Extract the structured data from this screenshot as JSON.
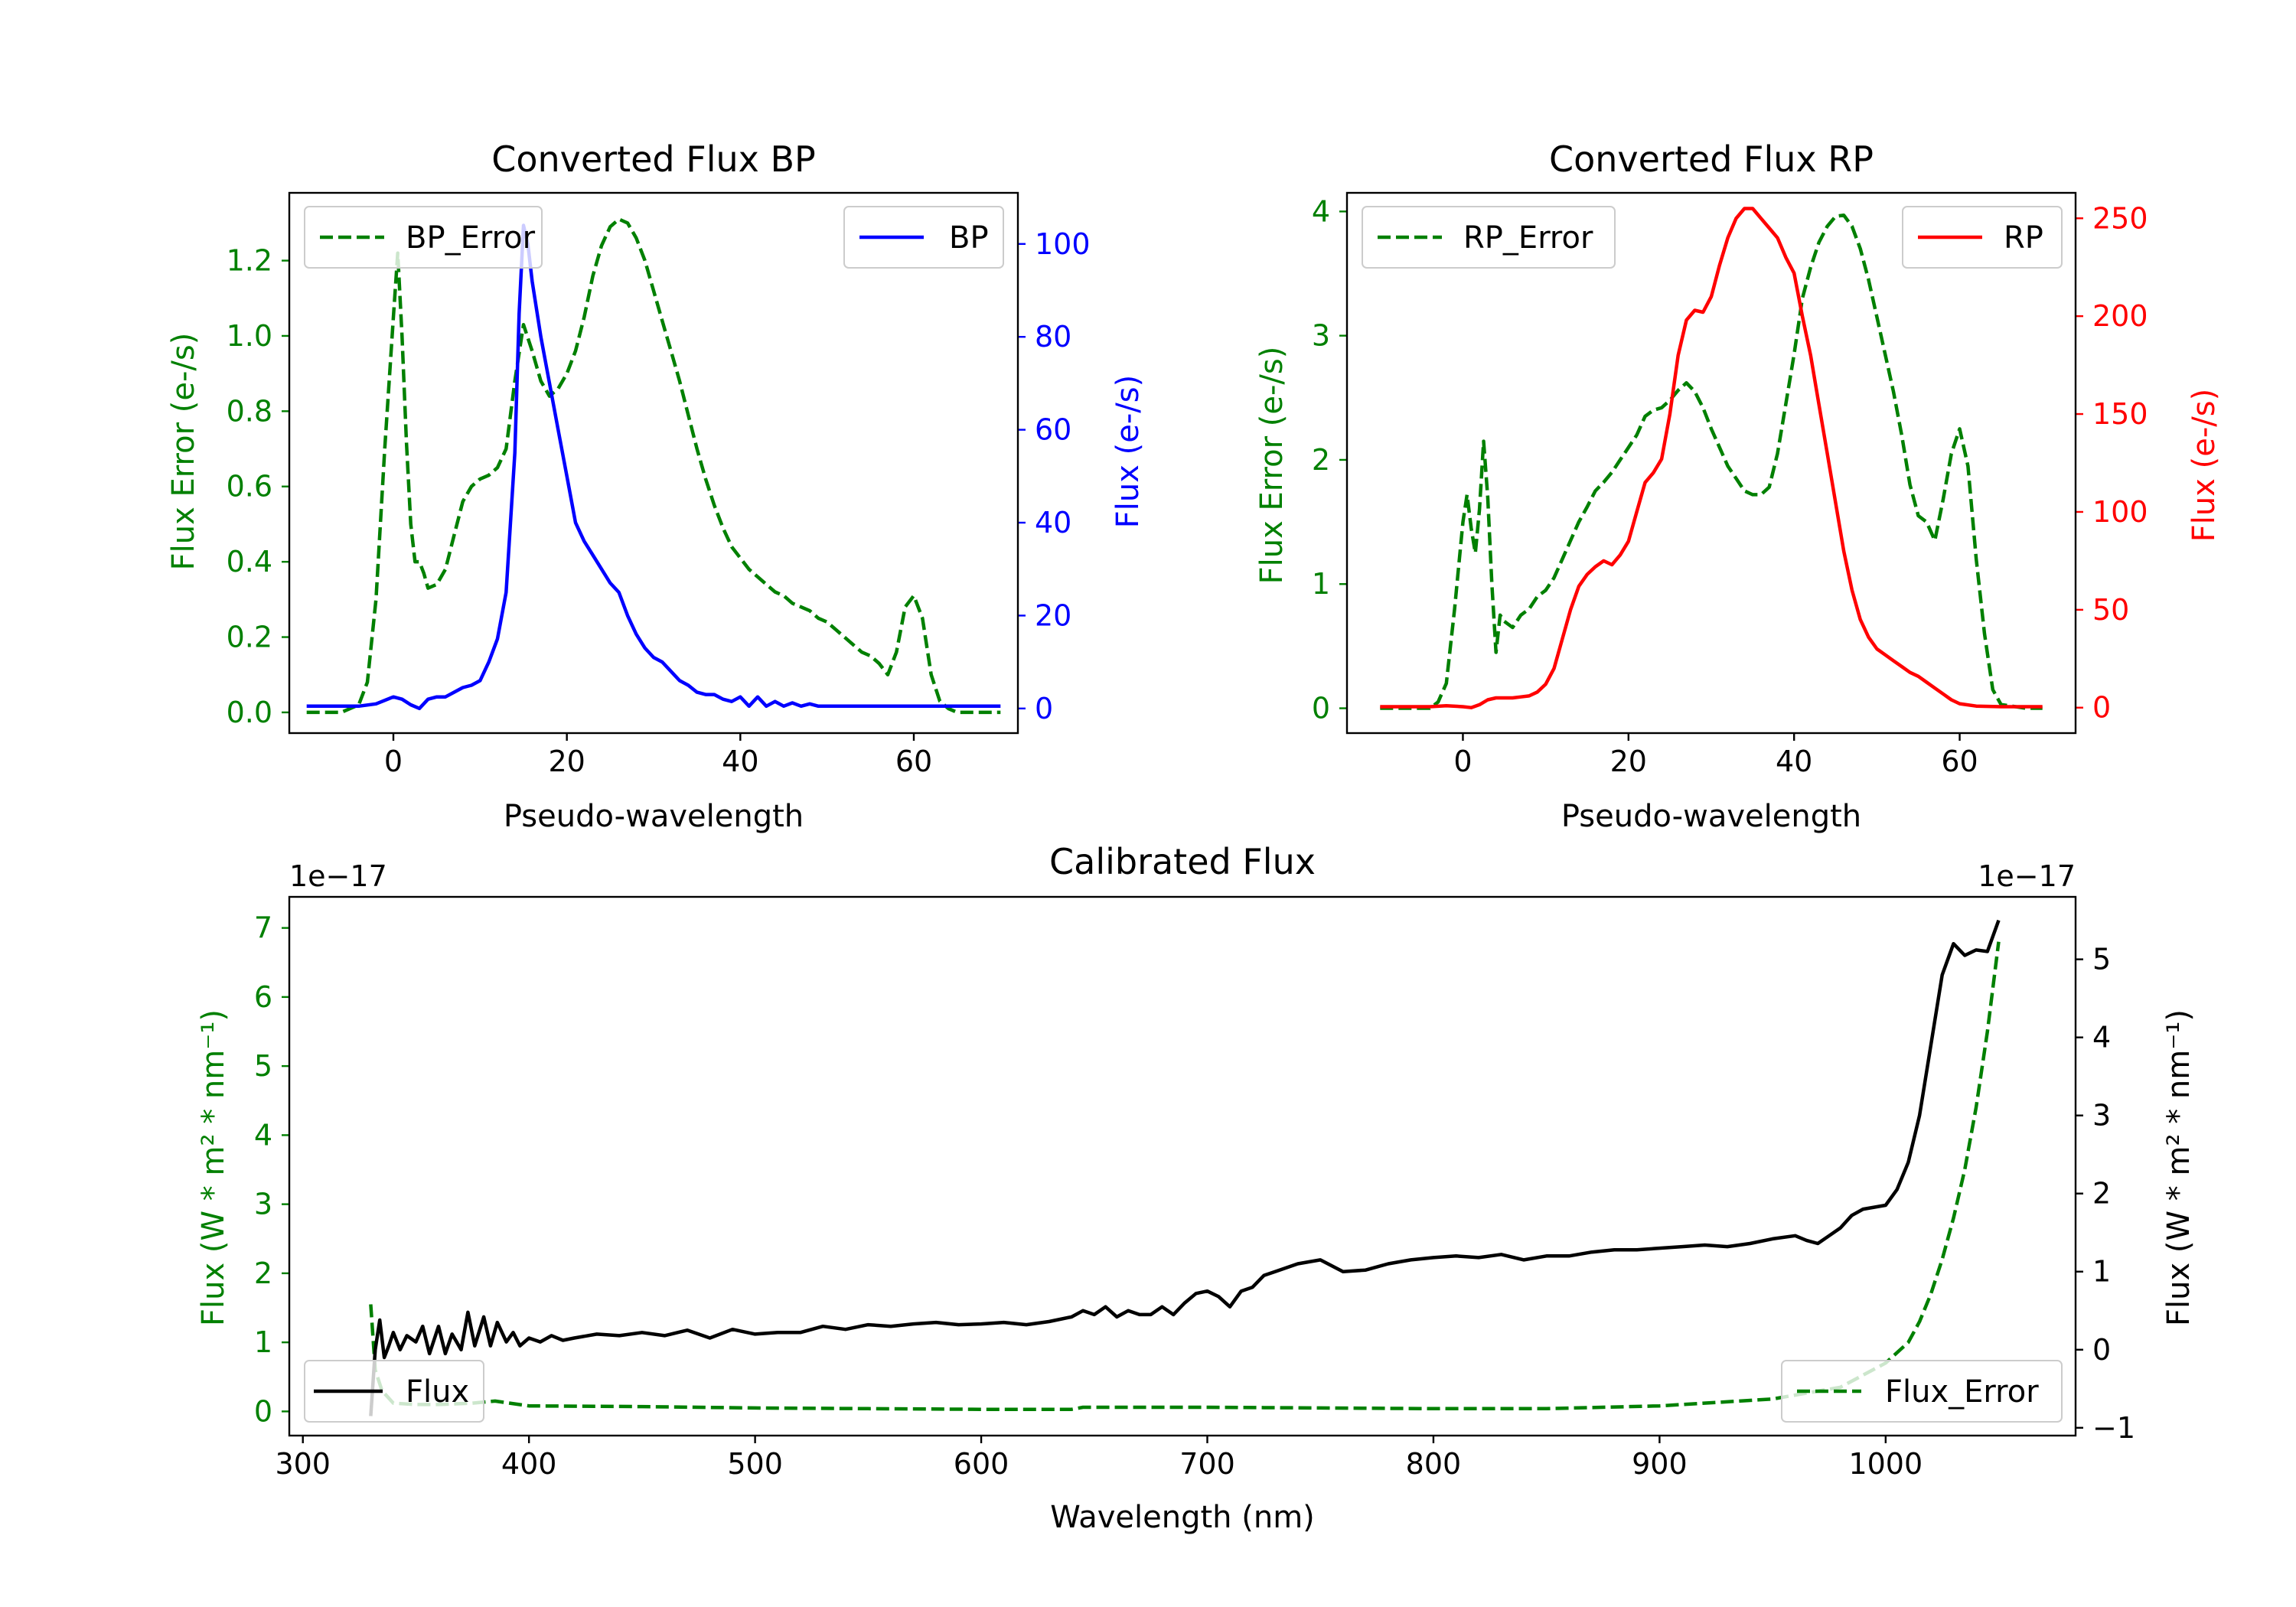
{
  "colors": {
    "error": "#008000",
    "bp": "#0000ff",
    "rp": "#ff0000",
    "flux": "#000000"
  },
  "chart_data": [
    {
      "id": "bp",
      "type": "line",
      "title": "Converted Flux BP",
      "xlabel": "Pseudo-wavelength",
      "ylabel_left": "Flux Error (e-/s)",
      "ylabel_right": "Flux (e-/s)",
      "xlim": [
        -12,
        72
      ],
      "ylim_left": [
        -0.055,
        1.38
      ],
      "ylim_right": [
        -5.3,
        111
      ],
      "xticks": [
        0,
        20,
        40,
        60
      ],
      "yticks_left": [
        0.0,
        0.2,
        0.4,
        0.6,
        0.8,
        1.0,
        1.2
      ],
      "yticks_left_labels": [
        "0.0",
        "0.2",
        "0.4",
        "0.6",
        "0.8",
        "1.0",
        "1.2"
      ],
      "yticks_right": [
        0,
        20,
        40,
        60,
        80,
        100
      ],
      "yticks_right_labels": [
        "0",
        "20",
        "40",
        "60",
        "80",
        "100"
      ],
      "legend_left": "BP_Error",
      "legend_right": "BP",
      "series": [
        {
          "name": "BP_Error",
          "axis": "left",
          "color": "#008000",
          "dash": true,
          "x": [
            -10,
            -6,
            -4,
            -3,
            -2,
            -1,
            0,
            0.5,
            1,
            1.5,
            2,
            2.5,
            3,
            3.5,
            4,
            5,
            6,
            7,
            8,
            9,
            10,
            11,
            12,
            13,
            14,
            15,
            16,
            17,
            18,
            19,
            20,
            21,
            22,
            23,
            24,
            25,
            26,
            27,
            28,
            29,
            30,
            31,
            32,
            33,
            34,
            35,
            36,
            37,
            38,
            39,
            40,
            41,
            42,
            43,
            44,
            45,
            46,
            47,
            48,
            49,
            50,
            51,
            52,
            53,
            54,
            55,
            56,
            57,
            58,
            59,
            60,
            61,
            62,
            63,
            64,
            65,
            66,
            68,
            70
          ],
          "y": [
            0.0,
            0.0,
            0.02,
            0.08,
            0.3,
            0.7,
            1.05,
            1.22,
            1.0,
            0.72,
            0.5,
            0.4,
            0.4,
            0.37,
            0.33,
            0.34,
            0.38,
            0.47,
            0.56,
            0.6,
            0.62,
            0.63,
            0.65,
            0.7,
            0.88,
            1.03,
            0.96,
            0.88,
            0.84,
            0.86,
            0.9,
            0.96,
            1.05,
            1.16,
            1.24,
            1.29,
            1.31,
            1.3,
            1.26,
            1.2,
            1.12,
            1.04,
            0.96,
            0.88,
            0.79,
            0.7,
            0.62,
            0.55,
            0.49,
            0.44,
            0.41,
            0.38,
            0.36,
            0.34,
            0.32,
            0.31,
            0.29,
            0.28,
            0.27,
            0.25,
            0.24,
            0.22,
            0.2,
            0.18,
            0.16,
            0.15,
            0.13,
            0.1,
            0.16,
            0.28,
            0.31,
            0.25,
            0.1,
            0.03,
            0.01,
            0.0,
            0.0,
            0.0,
            0.0
          ]
        },
        {
          "name": "BP",
          "axis": "right",
          "color": "#0000ff",
          "dash": false,
          "x": [
            -10,
            -4,
            -2,
            0,
            1,
            2,
            3,
            4,
            5,
            6,
            7,
            8,
            9,
            10,
            11,
            12,
            13,
            14,
            14.5,
            15,
            15.5,
            16,
            17,
            18,
            19,
            20,
            21,
            22,
            23,
            24,
            25,
            26,
            27,
            28,
            29,
            30,
            31,
            32,
            33,
            34,
            35,
            36,
            37,
            38,
            39,
            40,
            41,
            42,
            43,
            44,
            45,
            46,
            47,
            48,
            49,
            50,
            52,
            55,
            58,
            60,
            62,
            65,
            70
          ],
          "y": [
            0.5,
            0.5,
            1.0,
            2.5,
            2.0,
            0.8,
            0.0,
            2.0,
            2.5,
            2.5,
            3.5,
            4.5,
            5,
            6,
            10,
            15,
            25,
            55,
            85,
            104,
            100,
            92,
            80,
            70,
            60,
            50,
            40,
            36,
            33,
            30,
            27,
            25,
            20,
            16,
            13,
            11,
            10,
            8,
            6,
            5,
            3.5,
            3,
            3,
            2,
            1.5,
            2.5,
            0.5,
            2.5,
            0.5,
            1.5,
            0.5,
            1.2,
            0.5,
            1.0,
            0.5,
            0.5,
            0.5,
            0.5,
            0.5,
            0.5,
            0.5,
            0.5,
            0.5
          ]
        }
      ]
    },
    {
      "id": "rp",
      "type": "line",
      "title": "Converted Flux RP",
      "xlabel": "Pseudo-wavelength",
      "ylabel_left": "Flux Error (e-/s)",
      "ylabel_right": "Flux (e-/s)",
      "xlim": [
        -14,
        74
      ],
      "ylim_left": [
        -0.2,
        4.15
      ],
      "ylim_right": [
        -13,
        263
      ],
      "xticks": [
        0,
        20,
        40,
        60
      ],
      "yticks_left": [
        0,
        1,
        2,
        3,
        4
      ],
      "yticks_left_labels": [
        "0",
        "1",
        "2",
        "3",
        "4"
      ],
      "yticks_right": [
        0,
        50,
        100,
        150,
        200,
        250
      ],
      "yticks_right_labels": [
        "0",
        "50",
        "100",
        "150",
        "200",
        "250"
      ],
      "legend_left": "RP_Error",
      "legend_right": "RP",
      "series": [
        {
          "name": "RP_Error",
          "axis": "left",
          "color": "#008000",
          "dash": true,
          "x": [
            -10,
            -4,
            -3,
            -2,
            -1,
            0,
            0.5,
            1,
            1.5,
            2,
            2.5,
            3,
            3.5,
            4,
            4.5,
            5,
            6,
            7,
            8,
            9,
            10,
            11,
            12,
            13,
            14,
            15,
            16,
            17,
            18,
            19,
            20,
            21,
            22,
            23,
            24,
            25,
            26,
            27,
            28,
            29,
            30,
            31,
            32,
            33,
            34,
            35,
            36,
            37,
            38,
            39,
            40,
            41,
            42,
            43,
            44,
            45,
            46,
            47,
            48,
            49,
            50,
            51,
            52,
            53,
            54,
            55,
            56,
            57,
            58,
            59,
            60,
            61,
            62,
            63,
            64,
            65,
            68,
            70
          ],
          "y": [
            0.0,
            0.0,
            0.05,
            0.2,
            0.8,
            1.5,
            1.72,
            1.45,
            1.25,
            1.6,
            2.15,
            1.7,
            1.0,
            0.45,
            0.75,
            0.7,
            0.65,
            0.75,
            0.8,
            0.9,
            0.95,
            1.05,
            1.2,
            1.35,
            1.5,
            1.62,
            1.75,
            1.82,
            1.9,
            2.0,
            2.1,
            2.2,
            2.35,
            2.4,
            2.42,
            2.48,
            2.56,
            2.62,
            2.55,
            2.42,
            2.25,
            2.1,
            1.95,
            1.85,
            1.75,
            1.72,
            1.72,
            1.78,
            2.05,
            2.45,
            2.85,
            3.3,
            3.55,
            3.75,
            3.88,
            3.96,
            3.97,
            3.88,
            3.7,
            3.45,
            3.15,
            2.85,
            2.55,
            2.2,
            1.8,
            1.55,
            1.5,
            1.35,
            1.68,
            2.05,
            2.25,
            1.95,
            1.2,
            0.6,
            0.15,
            0.03,
            0.0,
            0.0
          ]
        },
        {
          "name": "RP",
          "axis": "right",
          "color": "#ff0000",
          "dash": false,
          "x": [
            -10,
            -4,
            -2,
            0,
            1,
            2,
            3,
            4,
            5,
            6,
            7,
            8,
            9,
            10,
            11,
            12,
            13,
            14,
            15,
            16,
            17,
            18,
            19,
            20,
            21,
            22,
            23,
            24,
            25,
            26,
            27,
            28,
            29,
            30,
            31,
            32,
            33,
            34,
            35,
            36,
            37,
            38,
            39,
            40,
            41,
            42,
            43,
            44,
            45,
            46,
            47,
            48,
            49,
            50,
            51,
            52,
            53,
            54,
            55,
            56,
            57,
            58,
            59,
            60,
            62,
            65,
            70
          ],
          "y": [
            0.5,
            0.5,
            1.0,
            0.5,
            0.0,
            1.5,
            4,
            5,
            5,
            5,
            5.5,
            6,
            8,
            12,
            20,
            35,
            50,
            62,
            68,
            72,
            75,
            73,
            78,
            85,
            100,
            115,
            120,
            127,
            150,
            180,
            198,
            203,
            202,
            210,
            226,
            240,
            250,
            255,
            255,
            250,
            245,
            240,
            230,
            222,
            200,
            180,
            155,
            130,
            105,
            80,
            60,
            45,
            36,
            30,
            27,
            24,
            21,
            18,
            16,
            13,
            10,
            7,
            4,
            2,
            0.8,
            0.5,
            0.5
          ]
        }
      ]
    },
    {
      "id": "calibrated",
      "type": "line",
      "title": "Calibrated Flux",
      "xlabel": "Wavelength (nm)",
      "ylabel_left": "Flux (W * m² * nm⁻¹)",
      "ylabel_right": "Flux (W * m² * nm⁻¹)",
      "offset_left": "1e−17",
      "offset_right": "1e−17",
      "xlim": [
        294,
        1084
      ],
      "ylim_left": [
        -0.35,
        7.45
      ],
      "ylim_right": [
        -1.1,
        5.8
      ],
      "xticks": [
        300,
        400,
        500,
        600,
        700,
        800,
        900,
        1000
      ],
      "yticks_left": [
        0,
        1,
        2,
        3,
        4,
        5,
        6,
        7
      ],
      "yticks_left_labels": [
        "0",
        "1",
        "2",
        "3",
        "4",
        "5",
        "6",
        "7"
      ],
      "yticks_right": [
        -1,
        0,
        1,
        2,
        3,
        4,
        5
      ],
      "yticks_right_labels": [
        "−1",
        "0",
        "1",
        "2",
        "3",
        "4",
        "5"
      ],
      "legend_left": "Flux",
      "legend_right": "Flux_Error",
      "series": [
        {
          "name": "Flux_Error",
          "axis": "left",
          "color": "#008000",
          "dash": true,
          "x": [
            330,
            332,
            335,
            340,
            350,
            360,
            375,
            385,
            400,
            450,
            500,
            550,
            600,
            640,
            645,
            700,
            750,
            800,
            850,
            900,
            950,
            980,
            1000,
            1010,
            1015,
            1020,
            1025,
            1030,
            1035,
            1040,
            1045,
            1050
          ],
          "y": [
            1.55,
            0.6,
            0.3,
            0.12,
            0.1,
            0.1,
            0.12,
            0.15,
            0.08,
            0.07,
            0.05,
            0.04,
            0.03,
            0.03,
            0.06,
            0.06,
            0.05,
            0.04,
            0.04,
            0.08,
            0.18,
            0.35,
            0.7,
            1.0,
            1.3,
            1.7,
            2.2,
            2.8,
            3.5,
            4.4,
            5.5,
            6.8
          ]
        },
        {
          "name": "Flux",
          "axis": "right",
          "color": "#000000",
          "dash": false,
          "x": [
            330,
            332,
            334,
            336,
            338,
            340,
            343,
            346,
            350,
            353,
            356,
            360,
            363,
            366,
            370,
            373,
            376,
            380,
            383,
            386,
            390,
            393,
            396,
            400,
            405,
            410,
            415,
            420,
            430,
            440,
            450,
            460,
            470,
            480,
            490,
            500,
            510,
            520,
            530,
            540,
            550,
            560,
            570,
            580,
            590,
            600,
            610,
            620,
            630,
            640,
            645,
            650,
            655,
            660,
            665,
            670,
            675,
            680,
            685,
            690,
            695,
            700,
            705,
            710,
            715,
            720,
            725,
            730,
            740,
            750,
            760,
            770,
            780,
            790,
            800,
            810,
            820,
            830,
            840,
            850,
            860,
            870,
            880,
            890,
            900,
            910,
            920,
            930,
            940,
            950,
            960,
            965,
            970,
            975,
            980,
            985,
            990,
            1000,
            1005,
            1010,
            1015,
            1020,
            1025,
            1030,
            1035,
            1040,
            1045,
            1050
          ],
          "y": [
            -0.85,
            0.0,
            0.38,
            -0.1,
            0.05,
            0.22,
            0.0,
            0.18,
            0.1,
            0.3,
            -0.05,
            0.3,
            -0.05,
            0.2,
            0.0,
            0.48,
            0.05,
            0.42,
            0.05,
            0.35,
            0.1,
            0.22,
            0.05,
            0.15,
            0.1,
            0.18,
            0.12,
            0.15,
            0.2,
            0.18,
            0.22,
            0.18,
            0.25,
            0.15,
            0.26,
            0.2,
            0.22,
            0.22,
            0.3,
            0.26,
            0.32,
            0.3,
            0.33,
            0.35,
            0.32,
            0.33,
            0.35,
            0.32,
            0.36,
            0.42,
            0.5,
            0.45,
            0.55,
            0.42,
            0.5,
            0.45,
            0.45,
            0.55,
            0.45,
            0.6,
            0.72,
            0.75,
            0.68,
            0.55,
            0.75,
            0.8,
            0.95,
            1.0,
            1.1,
            1.15,
            1.0,
            1.02,
            1.1,
            1.15,
            1.18,
            1.2,
            1.18,
            1.22,
            1.15,
            1.2,
            1.2,
            1.25,
            1.28,
            1.28,
            1.3,
            1.32,
            1.34,
            1.32,
            1.36,
            1.42,
            1.46,
            1.4,
            1.36,
            1.46,
            1.56,
            1.72,
            1.8,
            1.85,
            2.05,
            2.4,
            3.0,
            3.9,
            4.8,
            5.2,
            5.05,
            5.12,
            5.1,
            5.5
          ]
        }
      ]
    }
  ]
}
